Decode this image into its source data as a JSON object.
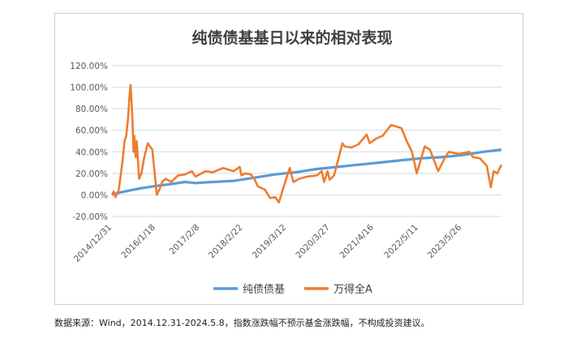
{
  "footnote": "数据来源：Wind，2014.12.31-2024.5.8，指数涨跌幅不预示基金涨跌幅，不构成投资建议。",
  "chart_data": {
    "type": "line",
    "title": "纯债债基基日以来的相对表现",
    "y_tick_labels": [
      "120.00%",
      "100.00%",
      "80.00%",
      "60.00%",
      "40.00%",
      "20.00%",
      "0.00%",
      "-20.00%"
    ],
    "y_ticks": [
      120,
      100,
      80,
      60,
      40,
      20,
      0,
      -20
    ],
    "ylim": [
      -20,
      120
    ],
    "x_tick_labels": [
      "2014/12/31",
      "2016/1/18",
      "2017/2/8",
      "2018/2/22",
      "2019/3/12",
      "2020/3/27",
      "2021/4/16",
      "2022/5/11",
      "2023/5/26"
    ],
    "x_range": [
      "2014-12-31",
      "2024-05-08"
    ],
    "grid": true,
    "legend_position": "bottom",
    "series": [
      {
        "name": "纯债债基",
        "color": "#5b9bd5",
        "points": [
          [
            "2014-12-31",
            0
          ],
          [
            "2015-03-01",
            2
          ],
          [
            "2015-06-01",
            4
          ],
          [
            "2015-09-01",
            6
          ],
          [
            "2016-01-01",
            8
          ],
          [
            "2016-06-01",
            10
          ],
          [
            "2016-10-01",
            12
          ],
          [
            "2017-01-01",
            11
          ],
          [
            "2017-06-01",
            12
          ],
          [
            "2017-12-01",
            13
          ],
          [
            "2018-06-01",
            16
          ],
          [
            "2018-12-01",
            19
          ],
          [
            "2019-06-01",
            21
          ],
          [
            "2019-12-01",
            24
          ],
          [
            "2020-06-01",
            26
          ],
          [
            "2020-12-01",
            28
          ],
          [
            "2021-06-01",
            30
          ],
          [
            "2021-12-01",
            32
          ],
          [
            "2022-06-01",
            34
          ],
          [
            "2022-12-01",
            35
          ],
          [
            "2023-06-01",
            37
          ],
          [
            "2023-12-01",
            40
          ],
          [
            "2024-05-08",
            42
          ]
        ]
      },
      {
        "name": "万得全A",
        "color": "#ed7d31",
        "points": [
          [
            "2014-12-31",
            0
          ],
          [
            "2015-01-15",
            3
          ],
          [
            "2015-02-01",
            -2
          ],
          [
            "2015-03-01",
            5
          ],
          [
            "2015-04-01",
            30
          ],
          [
            "2015-04-20",
            50
          ],
          [
            "2015-05-05",
            55
          ],
          [
            "2015-05-20",
            70
          ],
          [
            "2015-06-01",
            90
          ],
          [
            "2015-06-12",
            102
          ],
          [
            "2015-06-20",
            88
          ],
          [
            "2015-06-28",
            70
          ],
          [
            "2015-07-08",
            40
          ],
          [
            "2015-07-15",
            55
          ],
          [
            "2015-07-27",
            35
          ],
          [
            "2015-08-05",
            50
          ],
          [
            "2015-08-26",
            15
          ],
          [
            "2015-09-15",
            20
          ],
          [
            "2015-10-10",
            35
          ],
          [
            "2015-11-10",
            48
          ],
          [
            "2015-12-20",
            42
          ],
          [
            "2016-01-05",
            25
          ],
          [
            "2016-01-28",
            0
          ],
          [
            "2016-02-20",
            5
          ],
          [
            "2016-03-15",
            12
          ],
          [
            "2016-04-15",
            15
          ],
          [
            "2016-06-01",
            12
          ],
          [
            "2016-08-01",
            18
          ],
          [
            "2016-10-01",
            19
          ],
          [
            "2016-11-30",
            22
          ],
          [
            "2017-01-01",
            17
          ],
          [
            "2017-04-01",
            22
          ],
          [
            "2017-06-01",
            21
          ],
          [
            "2017-09-01",
            25
          ],
          [
            "2017-12-01",
            22
          ],
          [
            "2018-01-24",
            26
          ],
          [
            "2018-02-09",
            18
          ],
          [
            "2018-03-12",
            20
          ],
          [
            "2018-05-01",
            19
          ],
          [
            "2018-06-01",
            15
          ],
          [
            "2018-07-01",
            8
          ],
          [
            "2018-09-01",
            5
          ],
          [
            "2018-10-19",
            -3
          ],
          [
            "2018-12-01",
            -2
          ],
          [
            "2019-01-03",
            -7
          ],
          [
            "2019-02-15",
            8
          ],
          [
            "2019-04-08",
            25
          ],
          [
            "2019-05-10",
            12
          ],
          [
            "2019-07-01",
            15
          ],
          [
            "2019-09-10",
            17
          ],
          [
            "2019-12-01",
            18
          ],
          [
            "2020-01-14",
            22
          ],
          [
            "2020-02-03",
            12
          ],
          [
            "2020-03-05",
            22
          ],
          [
            "2020-03-23",
            14
          ],
          [
            "2020-05-01",
            18
          ],
          [
            "2020-07-13",
            48
          ],
          [
            "2020-08-01",
            45
          ],
          [
            "2020-10-01",
            44
          ],
          [
            "2020-12-01",
            47
          ],
          [
            "2021-02-10",
            56
          ],
          [
            "2021-03-10",
            48
          ],
          [
            "2021-05-01",
            52
          ],
          [
            "2021-07-01",
            55
          ],
          [
            "2021-09-14",
            65
          ],
          [
            "2021-12-13",
            62
          ],
          [
            "2022-01-28",
            50
          ],
          [
            "2022-03-15",
            40
          ],
          [
            "2022-04-26",
            20
          ],
          [
            "2022-07-05",
            45
          ],
          [
            "2022-08-20",
            42
          ],
          [
            "2022-10-31",
            22
          ],
          [
            "2022-12-31",
            35
          ],
          [
            "2023-02-01",
            40
          ],
          [
            "2023-05-01",
            38
          ],
          [
            "2023-07-31",
            40
          ],
          [
            "2023-09-01",
            35
          ],
          [
            "2023-11-01",
            34
          ],
          [
            "2023-12-31",
            27
          ],
          [
            "2024-02-05",
            7
          ],
          [
            "2024-03-01",
            22
          ],
          [
            "2024-04-01",
            20
          ],
          [
            "2024-05-08",
            28
          ]
        ]
      }
    ]
  }
}
